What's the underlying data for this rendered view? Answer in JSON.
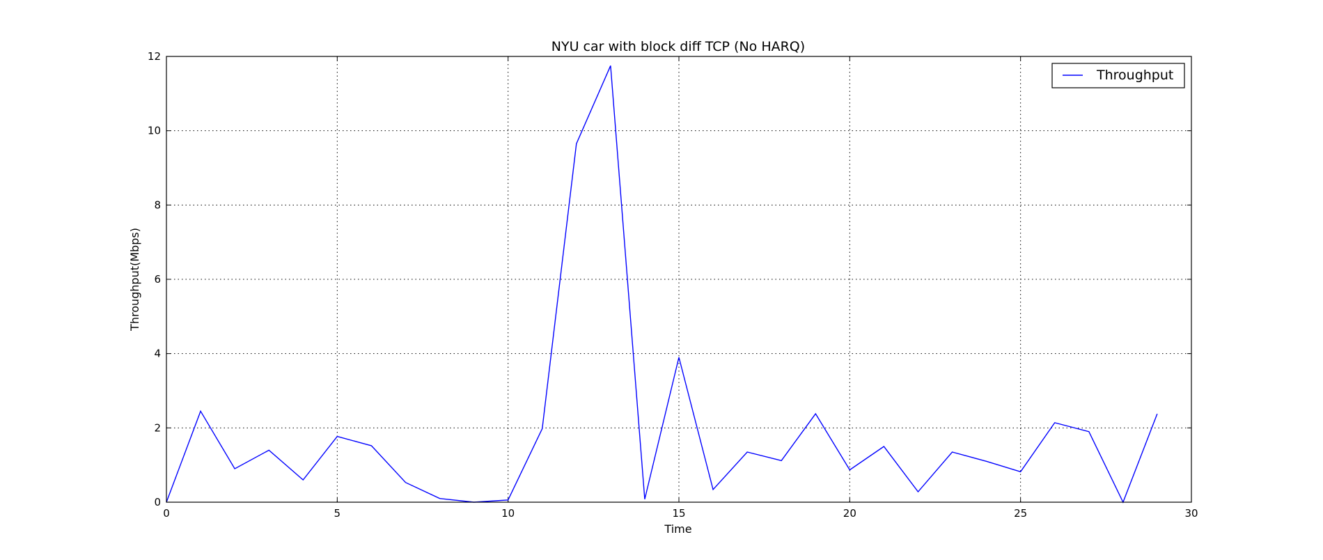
{
  "chart_data": {
    "type": "line",
    "title": "NYU car with block diff TCP (No HARQ)",
    "xlabel": "Time",
    "ylabel": "Throughput(Mbps)",
    "xlim": [
      0,
      30
    ],
    "ylim": [
      0,
      12
    ],
    "x_ticks": [
      0,
      5,
      10,
      15,
      20,
      25,
      30
    ],
    "y_ticks": [
      0,
      2,
      4,
      6,
      8,
      10,
      12
    ],
    "grid": true,
    "legend_position": "top-right",
    "series": [
      {
        "name": "Throughput",
        "color": "#0000ff",
        "x": [
          0,
          1,
          2,
          3,
          4,
          5,
          6,
          7,
          8,
          9,
          10,
          11,
          12,
          13,
          14,
          15,
          16,
          17,
          18,
          19,
          20,
          21,
          22,
          23,
          24,
          25,
          26,
          27,
          28,
          29
        ],
        "y": [
          0.0,
          2.45,
          0.9,
          1.4,
          0.6,
          1.77,
          1.52,
          0.53,
          0.1,
          0.0,
          0.06,
          1.98,
          9.65,
          11.75,
          0.08,
          3.9,
          0.34,
          1.35,
          1.12,
          2.38,
          0.87,
          1.5,
          0.28,
          1.35,
          1.1,
          0.82,
          2.14,
          1.9,
          0.0,
          2.38
        ]
      }
    ]
  }
}
